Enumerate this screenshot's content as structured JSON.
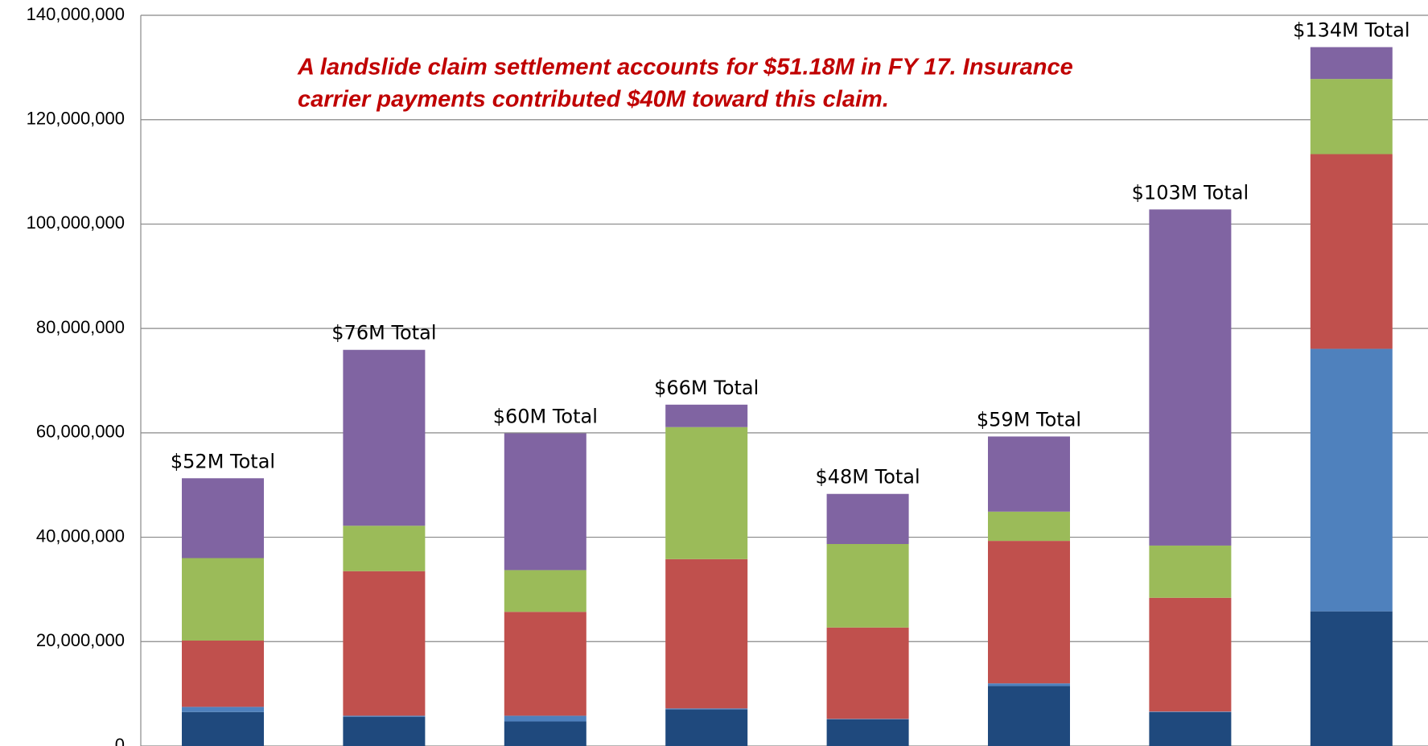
{
  "chart_data": {
    "type": "stacked_bar",
    "annotation": [
      "A landslide claim settlement accounts for $51.18M in FY 17. Insurance",
      "carrier payments contributed $40M toward this claim."
    ],
    "categories": [
      null,
      null,
      null,
      null,
      null,
      null,
      null,
      null
    ],
    "total_labels": [
      "$52M Total",
      "$76M Total",
      "$60M Total",
      "$66M Total",
      "$48M Total",
      "$59M Total",
      "$103M Total",
      "$134M Total"
    ],
    "series": [
      {
        "color": "#1f497d",
        "values": [
          6500000,
          5600000,
          4700000,
          7000000,
          5100000,
          11500000,
          6500000,
          25800000
        ]
      },
      {
        "color": "#4f81bd",
        "values": [
          1000000,
          200000,
          1100000,
          200000,
          100000,
          500000,
          100000,
          50300000
        ]
      },
      {
        "color": "#c0504d",
        "values": [
          12700000,
          27700000,
          19900000,
          28600000,
          17500000,
          27300000,
          21800000,
          37300000
        ]
      },
      {
        "color": "#9bbb59",
        "values": [
          15800000,
          8700000,
          8000000,
          25300000,
          16000000,
          5600000,
          10000000,
          14400000
        ]
      },
      {
        "color": "#8064a2",
        "values": [
          15300000,
          33700000,
          26200000,
          4300000,
          9600000,
          14400000,
          64400000,
          6100000
        ]
      }
    ],
    "ylim": [
      0,
      140000000
    ],
    "yticks": [
      0,
      {
        "value": 20000000,
        "label": "20,000,000"
      },
      {
        "value": 40000000,
        "label": "40,000,000"
      },
      {
        "value": 60000000,
        "label": "60,000,000"
      },
      {
        "value": 80000000,
        "label": "80,000,000"
      },
      {
        "value": 100000000,
        "label": "100,000,000"
      },
      {
        "value": 120000000,
        "label": "120,000,000"
      },
      {
        "value": 140000000,
        "label": "140,000,000"
      }
    ],
    "grid": true
  }
}
